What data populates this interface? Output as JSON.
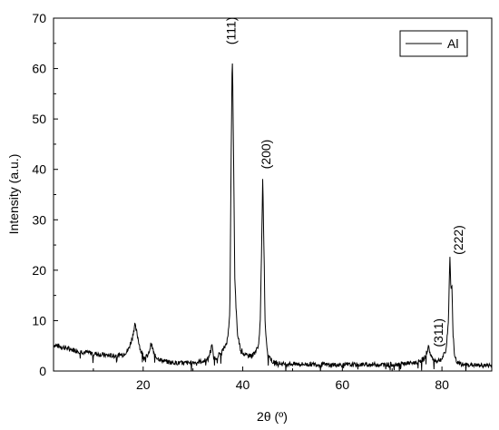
{
  "chart_data": {
    "type": "line",
    "xlabel": "2θ (º)",
    "ylabel": "Intensity (a.u.)",
    "xlim": [
      2,
      90
    ],
    "ylim": [
      0,
      70
    ],
    "x_ticks": [
      20,
      40,
      60,
      80
    ],
    "y_ticks": [
      0,
      10,
      20,
      30,
      40,
      50,
      60,
      70
    ],
    "grid": false,
    "legend_position": "top-right",
    "series": [
      {
        "name": "Al",
        "color": "#000000",
        "x": [
          2,
          4,
          6,
          8,
          10,
          12,
          14,
          16,
          17,
          17.8,
          18.3,
          18.8,
          19.5,
          20.3,
          21,
          21.6,
          22.3,
          23.5,
          25,
          27,
          29,
          31,
          33,
          33.8,
          34.2,
          34.6,
          35.5,
          36.3,
          37,
          37.4,
          37.7,
          37.9,
          38.1,
          38.4,
          38.9,
          39.5,
          40.5,
          42,
          43,
          43.5,
          43.8,
          44,
          44.2,
          44.5,
          45,
          46,
          48,
          50,
          55,
          60,
          65,
          70,
          75,
          76.5,
          77.3,
          77.8,
          78.3,
          79,
          80,
          80.8,
          81.3,
          81.6,
          81.8,
          82.0,
          82.2,
          82.5,
          83,
          84,
          86,
          88,
          90
        ],
        "y": [
          5.2,
          4.7,
          4.2,
          3.8,
          3.5,
          3.2,
          3.0,
          3.3,
          4.2,
          6.5,
          9.2,
          7.3,
          4.0,
          2.7,
          3.0,
          5.5,
          3.0,
          2.2,
          1.8,
          1.6,
          1.6,
          1.8,
          2.2,
          5.0,
          2.5,
          2.7,
          3.5,
          4.5,
          6.5,
          12.0,
          45.0,
          63.5,
          48.0,
          18.0,
          7.5,
          4.5,
          3.0,
          3.2,
          4.5,
          9.0,
          25.0,
          38.5,
          28.0,
          9.0,
          3.5,
          1.8,
          1.4,
          1.4,
          1.3,
          1.2,
          1.3,
          1.3,
          1.7,
          2.5,
          4.8,
          3.0,
          2.2,
          2.0,
          2.4,
          4.0,
          10.0,
          23.0,
          16.0,
          17.0,
          8.0,
          3.0,
          1.7,
          1.3,
          1.2,
          1.1,
          1.1
        ]
      }
    ],
    "annotations": [
      {
        "text": "(111)",
        "x": 38.5,
        "y": 67.5
      },
      {
        "text": "(200)",
        "x": 45.5,
        "y": 43.0
      },
      {
        "text": "(311)",
        "x": 80.2,
        "y": 7.6
      },
      {
        "text": "(222)",
        "x": 84.2,
        "y": 26.0
      }
    ]
  }
}
